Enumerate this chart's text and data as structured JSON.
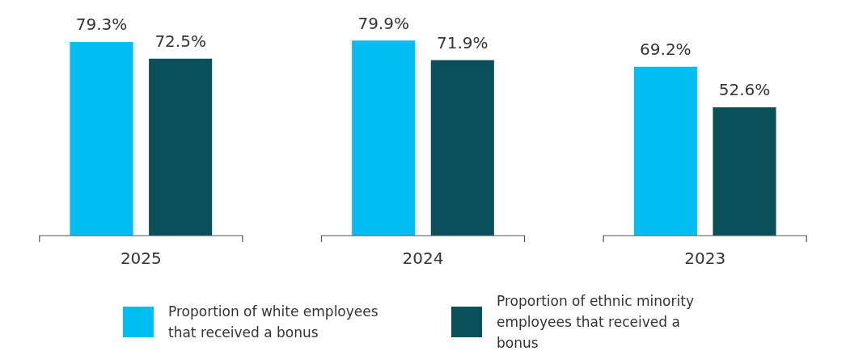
{
  "chart_data": {
    "type": "bar",
    "categories": [
      "2025",
      "2024",
      "2023"
    ],
    "series": [
      {
        "name": "Proportion of white employees that received a bonus",
        "color": "#00bdf2",
        "values": [
          79.3,
          79.9,
          69.2
        ],
        "value_labels": [
          "79.3%",
          "79.9%",
          "69.2%"
        ]
      },
      {
        "name": "Proportion of ethnic minority employees that received a bonus",
        "color": "#0a505b",
        "values": [
          72.5,
          71.9,
          52.6
        ],
        "value_labels": [
          "72.5%",
          "71.9%",
          "52.6%"
        ]
      }
    ],
    "legend": "bottom"
  }
}
